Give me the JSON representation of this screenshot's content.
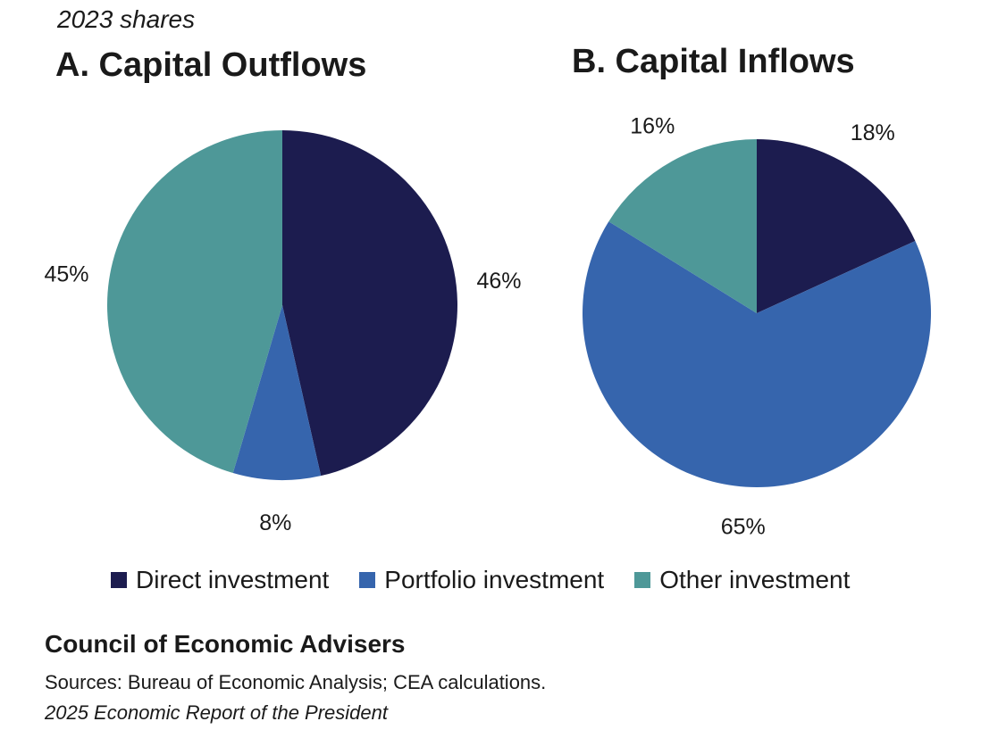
{
  "subtitle": "2023 shares",
  "footer": {
    "organization": "Council of Economic Advisers",
    "sources": "Sources: Bureau of Economic Analysis; CEA calculations.",
    "report": "2025 Economic Report of the President"
  },
  "legend": [
    {
      "label": "Direct investment",
      "color": "#1c1c4f"
    },
    {
      "label": "Portfolio investment",
      "color": "#3665ad"
    },
    {
      "label": "Other investment",
      "color": "#4e9898"
    }
  ],
  "chart_data": [
    {
      "type": "pie",
      "title": "A. Capital Outflows",
      "categories": [
        "Direct investment",
        "Portfolio investment",
        "Other investment"
      ],
      "values": [
        46,
        8,
        45
      ],
      "labels": [
        "46%",
        "8%",
        "45%"
      ],
      "colors": [
        "#1c1c4f",
        "#3665ad",
        "#4e9898"
      ]
    },
    {
      "type": "pie",
      "title": "B. Capital Inflows",
      "categories": [
        "Direct investment",
        "Portfolio investment",
        "Other investment"
      ],
      "values": [
        18,
        65,
        16
      ],
      "labels": [
        "18%",
        "65%",
        "16%"
      ],
      "colors": [
        "#1c1c4f",
        "#3665ad",
        "#4e9898"
      ]
    }
  ]
}
